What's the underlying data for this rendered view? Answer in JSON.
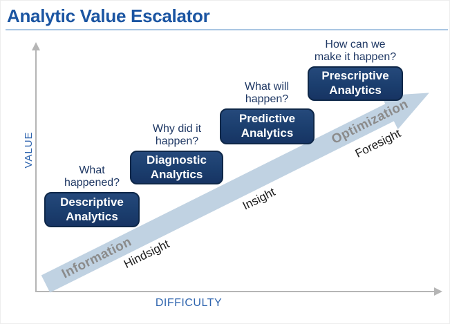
{
  "title": "Analytic Value Escalator",
  "axes": {
    "y_label": "VALUE",
    "x_label": "DIFFICULTY"
  },
  "steps": [
    {
      "question_line1": "What",
      "question_line2": "happened?",
      "box_line1": "Descriptive",
      "box_line2": "Analytics"
    },
    {
      "question_line1": "Why did it",
      "question_line2": "happen?",
      "box_line1": "Diagnostic",
      "box_line2": "Analytics"
    },
    {
      "question_line1": "What will",
      "question_line2": "happen?",
      "box_line1": "Predictive",
      "box_line2": "Analytics"
    },
    {
      "question_line1": "How can we",
      "question_line2": "make it happen?",
      "box_line1": "Prescriptive",
      "box_line2": "Analytics"
    }
  ],
  "escalator": {
    "band_label_start": "Information",
    "band_label_end": "Optimization",
    "stages": [
      "Hindsight",
      "Insight",
      "Foresight"
    ]
  },
  "colors": {
    "title_blue": "#1b55a2",
    "underline_blue": "#a9c6e2",
    "box_navy": "#1b3e6e",
    "box_border": "#0e2748",
    "band_light_blue": "#c0d2e2",
    "band_text_gray": "#8b8b8b",
    "question_navy": "#1f3864",
    "axis_gray": "#b5b5b5",
    "axis_label_blue": "#2e64ae"
  }
}
